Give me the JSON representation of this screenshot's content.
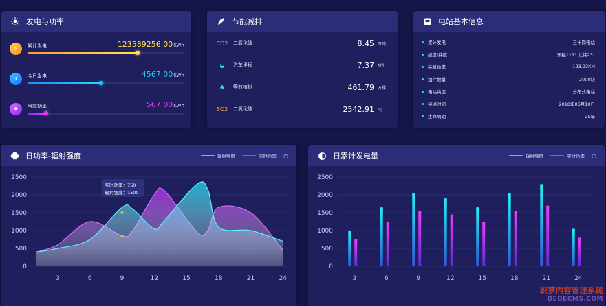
{
  "panels": {
    "generation": {
      "title": "发电与功率",
      "icon": "sun-icon",
      "rows": [
        {
          "label": "累计发电",
          "value": "123589256.00",
          "unit": "KWh",
          "color": "#ffe04a",
          "icon": "lightning-icon",
          "fill": 0.7
        },
        {
          "label": "今日发电",
          "value": "4567.00",
          "unit": "KWh",
          "color": "#22c8ff",
          "icon": "lightning-icon",
          "fill": 0.47
        },
        {
          "label": "当前功率",
          "value": "567.00",
          "unit": "KWh",
          "color": "#e03cff",
          "icon": "fan-icon",
          "fill": 0.12
        }
      ]
    },
    "energy_saving": {
      "title": "节能减排",
      "icon": "leaf-icon",
      "rows": [
        {
          "icon": "CO2",
          "label": "二氧化碳",
          "value": "8.45",
          "unit": "万吨"
        },
        {
          "icon": "car-icon",
          "label": "汽车里程",
          "value": "7.37",
          "unit": "KM"
        },
        {
          "icon": "tree-icon",
          "label": "等效植树",
          "value": "461.79",
          "unit": "万棵"
        },
        {
          "icon": "SO2",
          "label": "二氧化硫",
          "value": "2542.91",
          "unit": "吨"
        }
      ]
    },
    "station_info": {
      "title": "电站基本信息",
      "icon": "info-icon",
      "rows": [
        {
          "label": "累计发电",
          "value": "三十岗电站"
        },
        {
          "label": "经度/纬度",
          "value": "东经117° 北纬23°"
        },
        {
          "label": "装机功率",
          "value": "123.23KM"
        },
        {
          "label": "组件数量",
          "value": "2000块"
        },
        {
          "label": "电站类型",
          "value": "分布式电站"
        },
        {
          "label": "接通时间",
          "value": "2018年06月10日"
        },
        {
          "label": "生命周期",
          "value": "25年"
        }
      ]
    },
    "power_radiation": {
      "title": "日功率-辐射强度",
      "icon": "cloud-icon",
      "legend": [
        {
          "name": "辐射强度",
          "color": "#2bd2f5"
        },
        {
          "name": "实时功率",
          "color": "#c13cf5"
        }
      ],
      "tooltip": {
        "line1": "实时功率：750",
        "line2": "辐射强度：1500"
      }
    },
    "daily_generation": {
      "title": "日累计发电量",
      "icon": "contrast-icon",
      "legend": [
        {
          "name": "辐射强度",
          "color": "#2bd2f5"
        },
        {
          "name": "实时功率",
          "color": "#c13cf5"
        }
      ]
    }
  },
  "watermark": {
    "line1": "织梦内容管理系统",
    "line2": "DEDECMS.COM"
  },
  "chart_data": [
    {
      "type": "area",
      "x": [
        1,
        3,
        6,
        9,
        10,
        12,
        13,
        16,
        17,
        18,
        21,
        24
      ],
      "ylim": [
        0,
        2500
      ],
      "yticks": [
        0,
        500,
        1000,
        1500,
        2000,
        2500
      ],
      "xticks": [
        3,
        6,
        9,
        12,
        15,
        18,
        21,
        24
      ],
      "xlim": [
        0.5,
        24.5
      ],
      "series": [
        {
          "name": "辐射强度",
          "values": [
            400,
            500,
            750,
            1650,
            1600,
            1050,
            1300,
            2300,
            2150,
            1100,
            1000,
            700
          ]
        },
        {
          "name": "实时功率",
          "values": [
            400,
            600,
            1250,
            850,
            1000,
            2000,
            2100,
            950,
            1000,
            1650,
            1500,
            450
          ]
        }
      ]
    },
    {
      "type": "bar",
      "categories": [
        "3",
        "6",
        "9",
        "12",
        "15",
        "18",
        "21",
        "24"
      ],
      "ylim": [
        0,
        2500
      ],
      "yticks": [
        0,
        500,
        1000,
        1500,
        2000,
        2500
      ],
      "series": [
        {
          "name": "辐射强度",
          "values": [
            1000,
            1650,
            2050,
            1900,
            1650,
            2050,
            2300,
            1050
          ]
        },
        {
          "name": "实时功率",
          "values": [
            750,
            1250,
            1550,
            1450,
            1250,
            1550,
            1700,
            800
          ]
        }
      ]
    }
  ]
}
